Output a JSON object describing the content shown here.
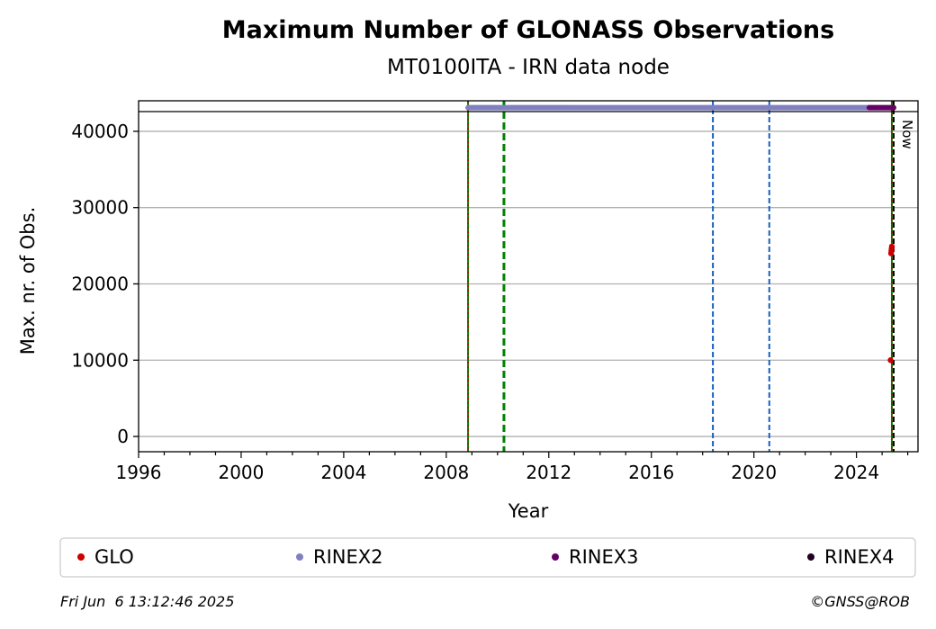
{
  "header": {
    "title": "Maximum Number of GLONASS Observations",
    "subtitle": "MT0100ITA - IRN data node"
  },
  "footer": {
    "timestamp": "Fri Jun  6 13:12:46 2025",
    "copyright": "©GNSS@ROB"
  },
  "now_label": "Now",
  "chart_data": {
    "type": "scatter",
    "title": "Maximum Number of GLONASS Observations",
    "subtitle": "MT0100ITA - IRN data node",
    "xlabel": "Year",
    "ylabel": "Max. nr. of Obs.",
    "xlim": [
      1996,
      2026.4
    ],
    "ylim": [
      -2000,
      44000
    ],
    "xticks": [
      1996,
      2000,
      2004,
      2008,
      2012,
      2016,
      2020,
      2024
    ],
    "xtick_labels": [
      "1996",
      "2000",
      "2004",
      "2008",
      "2012",
      "2016",
      "2020",
      "2024"
    ],
    "yticks": [
      0,
      10000,
      20000,
      30000,
      40000
    ],
    "ytick_labels": [
      "0",
      "10000",
      "20000",
      "30000",
      "40000"
    ],
    "grid": "horizontal",
    "legend_position": "below",
    "hline": 42500,
    "vlines": [
      {
        "x": 2008.85,
        "color": "#008000",
        "style": "solid"
      },
      {
        "x": 2008.85,
        "color": "#cc0000",
        "style": "dotted"
      },
      {
        "x": 2010.25,
        "color": "#008000",
        "style": "dashed-thick"
      },
      {
        "x": 2018.4,
        "color": "#1560bd",
        "style": "dashed"
      },
      {
        "x": 2020.6,
        "color": "#1560bd",
        "style": "dashed"
      },
      {
        "x": 2025.38,
        "color": "#008000",
        "style": "solid"
      },
      {
        "x": 2025.38,
        "color": "#cc0000",
        "style": "dotted"
      },
      {
        "x": 2025.45,
        "color": "#000000",
        "style": "dashed"
      }
    ],
    "series": [
      {
        "name": "GLO",
        "color": "#cc0000",
        "points": [
          [
            2025.33,
            10000
          ],
          [
            2025.35,
            24000
          ],
          [
            2025.36,
            24300
          ],
          [
            2025.37,
            24600
          ],
          [
            2025.38,
            24900
          ]
        ]
      },
      {
        "name": "RINEX2",
        "color": "#8080c0",
        "range": [
          2008.85,
          2024.5
        ],
        "y": 43100
      },
      {
        "name": "RINEX3",
        "color": "#660066",
        "range": [
          2024.5,
          2025.45
        ],
        "y": 43100
      },
      {
        "name": "RINEX4",
        "color": "#220022",
        "points": []
      }
    ]
  }
}
